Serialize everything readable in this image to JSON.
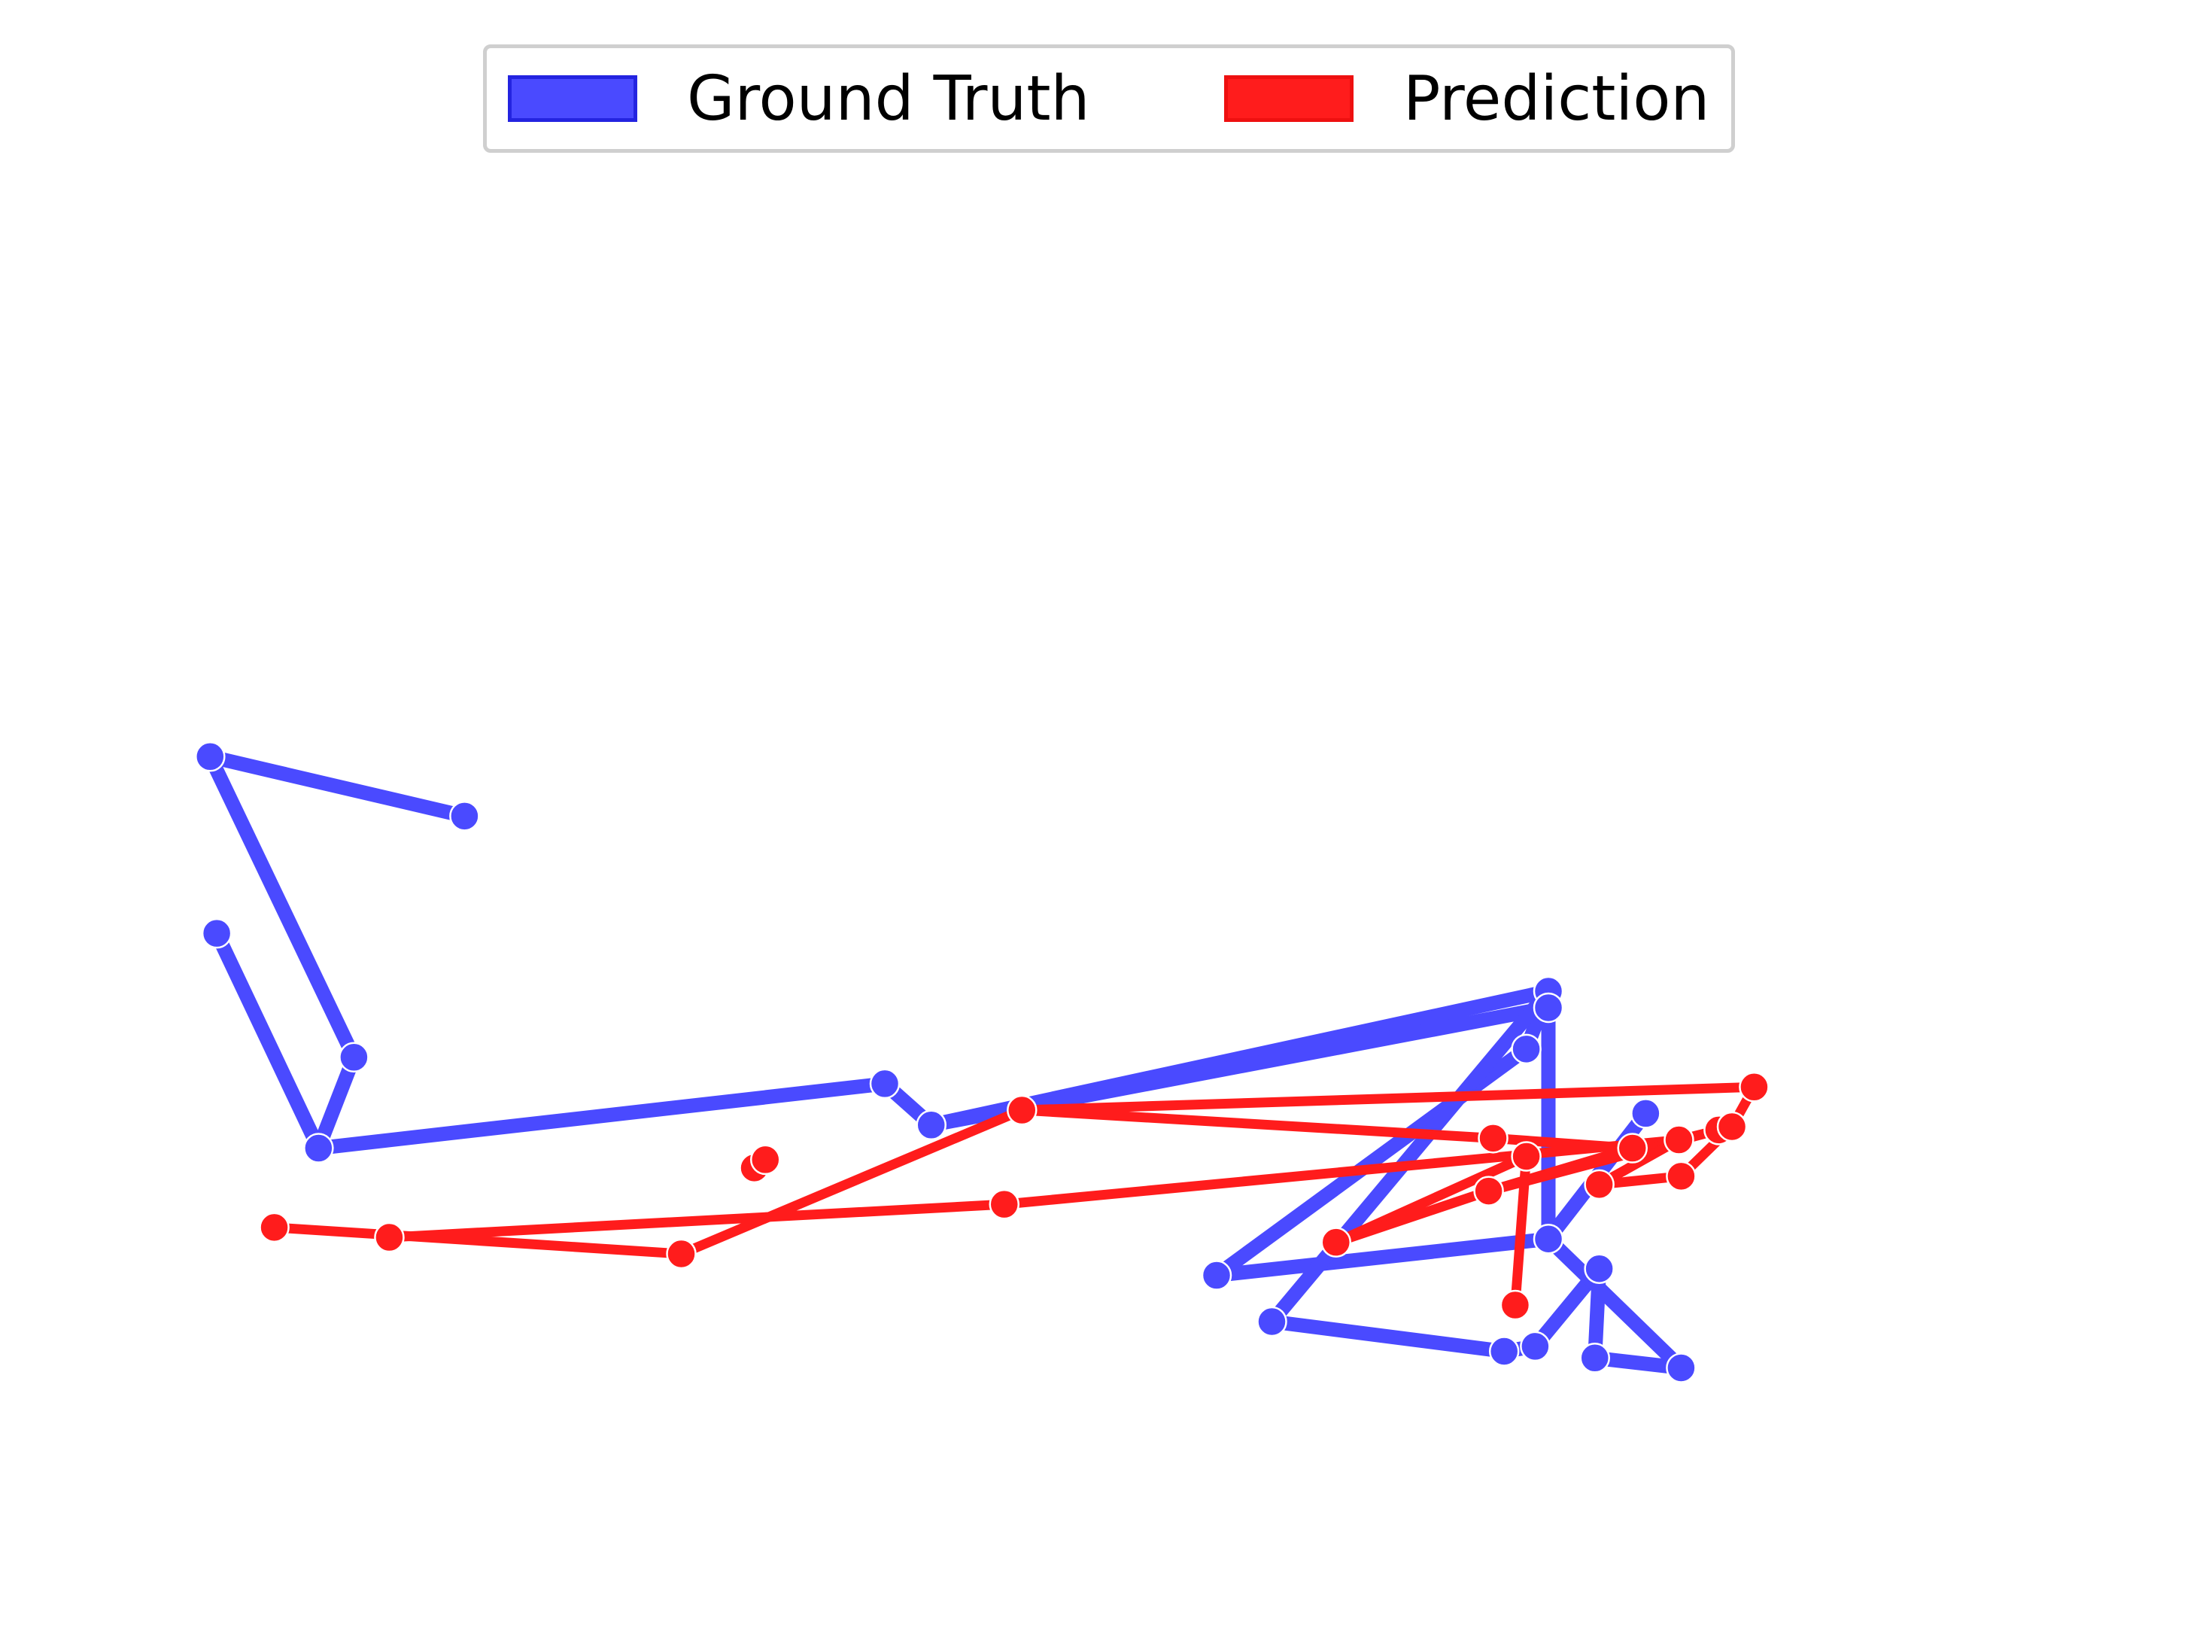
{
  "legend": {
    "ground_truth_label": "Ground Truth",
    "prediction_label": "Prediction"
  },
  "colors": {
    "ground_truth": "#4a4aff",
    "ground_truth_edge": "#2424e0",
    "prediction": "#ff1c1c",
    "prediction_edge": "#ee1010",
    "node_outline": "#ffffff"
  },
  "chart_data": {
    "type": "skeleton",
    "axes": "off",
    "legend_position": "top-center",
    "series": [
      {
        "name": "Ground Truth",
        "joints": [
          [
            0.21,
            0.494
          ],
          [
            0.095,
            0.458
          ],
          [
            0.098,
            0.565
          ],
          [
            0.16,
            0.64
          ],
          [
            0.144,
            0.695
          ],
          [
            0.4,
            0.656
          ],
          [
            0.421,
            0.681
          ],
          [
            0.7,
            0.6
          ],
          [
            0.69,
            0.635
          ],
          [
            0.7,
            0.61
          ],
          [
            0.744,
            0.674
          ],
          [
            0.7,
            0.75
          ],
          [
            0.55,
            0.772
          ],
          [
            0.575,
            0.8
          ],
          [
            0.68,
            0.818
          ],
          [
            0.694,
            0.815
          ],
          [
            0.723,
            0.768
          ],
          [
            0.721,
            0.822
          ],
          [
            0.76,
            0.828
          ]
        ],
        "bones": [
          [
            0,
            1
          ],
          [
            1,
            3
          ],
          [
            3,
            4
          ],
          [
            4,
            2
          ],
          [
            4,
            5
          ],
          [
            5,
            6
          ],
          [
            6,
            7
          ],
          [
            7,
            8
          ],
          [
            8,
            12
          ],
          [
            12,
            11
          ],
          [
            11,
            9
          ],
          [
            9,
            6
          ],
          [
            7,
            13
          ],
          [
            13,
            14
          ],
          [
            14,
            15
          ],
          [
            15,
            16
          ],
          [
            16,
            17
          ],
          [
            17,
            18
          ],
          [
            18,
            11
          ],
          [
            11,
            10
          ]
        ]
      },
      {
        "name": "Prediction",
        "joints": [
          [
            0.124,
            0.743
          ],
          [
            0.176,
            0.749
          ],
          [
            0.308,
            0.759
          ],
          [
            0.341,
            0.707
          ],
          [
            0.346,
            0.702
          ],
          [
            0.462,
            0.672
          ],
          [
            0.454,
            0.729
          ],
          [
            0.675,
            0.689
          ],
          [
            0.69,
            0.7
          ],
          [
            0.685,
            0.79
          ],
          [
            0.723,
            0.717
          ],
          [
            0.738,
            0.695
          ],
          [
            0.759,
            0.69
          ],
          [
            0.76,
            0.712
          ],
          [
            0.777,
            0.684
          ],
          [
            0.783,
            0.682
          ],
          [
            0.793,
            0.658
          ],
          [
            0.604,
            0.752
          ],
          [
            0.673,
            0.721
          ]
        ],
        "bones": [
          [
            0,
            2
          ],
          [
            2,
            5
          ],
          [
            5,
            7
          ],
          [
            7,
            11
          ],
          [
            1,
            6
          ],
          [
            6,
            12
          ],
          [
            12,
            14
          ],
          [
            3,
            4
          ],
          [
            5,
            16
          ],
          [
            10,
            13
          ],
          [
            13,
            15
          ],
          [
            15,
            16
          ],
          [
            9,
            8
          ],
          [
            8,
            17
          ],
          [
            17,
            18
          ],
          [
            18,
            11
          ],
          [
            14,
            18
          ],
          [
            10,
            12
          ]
        ]
      }
    ]
  }
}
